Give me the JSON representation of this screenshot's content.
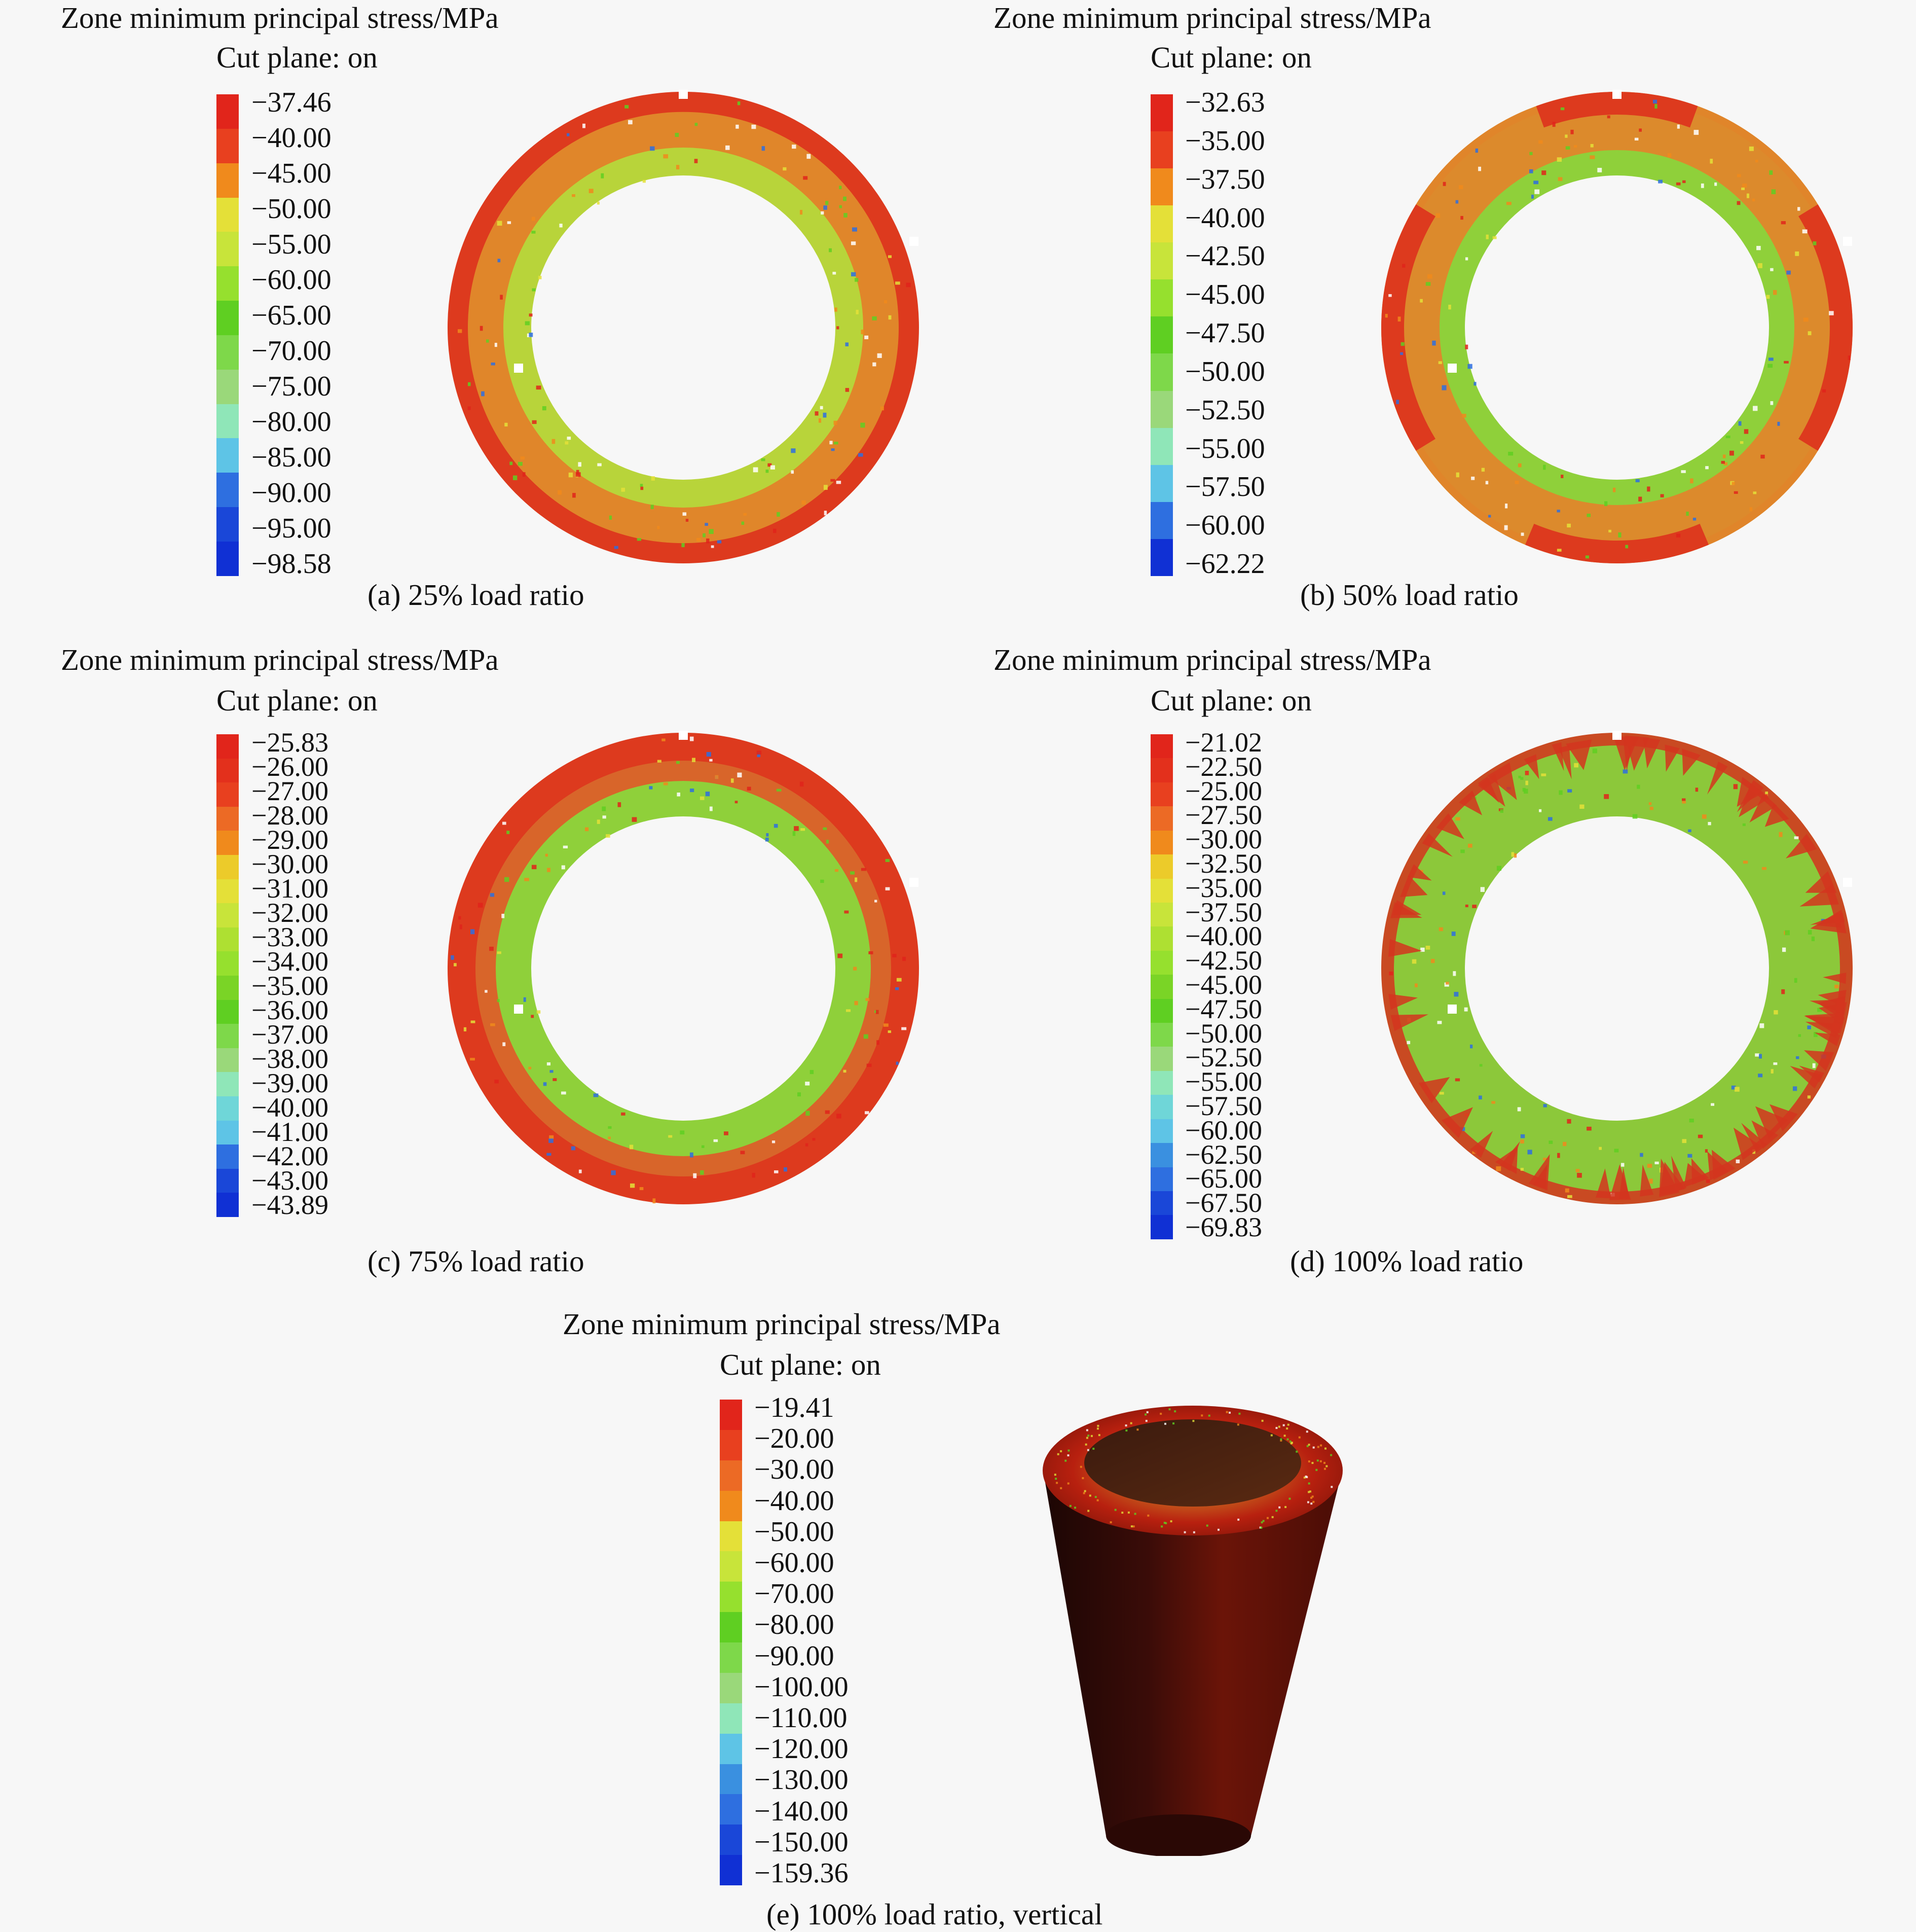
{
  "panels": [
    {
      "id": "a",
      "title": "Zone minimum principal stress/MPa",
      "subtitle": "Cut plane: on",
      "caption": "(a) 25% load ratio",
      "legend": [
        "−37.46",
        "−40.00",
        "−45.00",
        "−50.00",
        "−55.00",
        "−60.00",
        "−65.00",
        "−70.00",
        "−75.00",
        "−80.00",
        "−85.00",
        "−90.00",
        "−95.00",
        "−98.58"
      ],
      "colors": [
        "#e1251b",
        "#e8401f",
        "#f08a1c",
        "#e4e038",
        "#c8e43a",
        "#96e02e",
        "#5fcf22",
        "#7ed84a",
        "#9ad87a",
        "#8fe6b8",
        "#5ec4e6",
        "#2e6fe0",
        "#1a47d8",
        "#1030d4"
      ]
    },
    {
      "id": "b",
      "title": "Zone minimum principal stress/MPa",
      "subtitle": "Cut plane: on",
      "caption": "(b) 50% load ratio",
      "legend": [
        "−32.63",
        "−35.00",
        "−37.50",
        "−40.00",
        "−42.50",
        "−45.00",
        "−47.50",
        "−50.00",
        "−52.50",
        "−55.00",
        "−57.50",
        "−60.00",
        "−62.22"
      ],
      "colors": [
        "#e1251b",
        "#e8401f",
        "#f08a1c",
        "#e4e038",
        "#c8e43a",
        "#96e02e",
        "#5fcf22",
        "#7ed84a",
        "#9ad87a",
        "#8fe6b8",
        "#5ec4e6",
        "#2e6fe0",
        "#1030d4"
      ]
    },
    {
      "id": "c",
      "title": "Zone minimum principal stress/MPa",
      "subtitle": "Cut plane: on",
      "caption": "(c) 75% load ratio",
      "legend": [
        "−25.83",
        "−26.00",
        "−27.00",
        "−28.00",
        "−29.00",
        "−30.00",
        "−31.00",
        "−32.00",
        "−33.00",
        "−34.00",
        "−35.00",
        "−36.00",
        "−37.00",
        "−38.00",
        "−39.00",
        "−40.00",
        "−41.00",
        "−42.00",
        "−43.00",
        "−43.89"
      ],
      "colors": [
        "#e1251b",
        "#e3301c",
        "#e8401f",
        "#ec6a25",
        "#f08a1c",
        "#eccb2a",
        "#e4e038",
        "#c8e43a",
        "#aee032",
        "#96e02e",
        "#7ad426",
        "#5fcf22",
        "#7ed84a",
        "#9ad87a",
        "#8fe6b8",
        "#6fd6d8",
        "#5ec4e6",
        "#2e6fe0",
        "#1a47d8",
        "#1030d4"
      ]
    },
    {
      "id": "d",
      "title": "Zone minimum principal stress/MPa",
      "subtitle": "Cut plane: on",
      "caption": "(d) 100% load ratio",
      "legend": [
        "−21.02",
        "−22.50",
        "−25.00",
        "−27.50",
        "−30.00",
        "−32.50",
        "−35.00",
        "−37.50",
        "−40.00",
        "−42.50",
        "−45.00",
        "−47.50",
        "−50.00",
        "−52.50",
        "−55.00",
        "−57.50",
        "−60.00",
        "−62.50",
        "−65.00",
        "−67.50",
        "−69.83"
      ],
      "colors": [
        "#e1251b",
        "#e3301c",
        "#e8401f",
        "#ec6a25",
        "#f08a1c",
        "#eccb2a",
        "#e4e038",
        "#c8e43a",
        "#aee032",
        "#96e02e",
        "#7ad426",
        "#5fcf22",
        "#7ed84a",
        "#9ad87a",
        "#8fe6b8",
        "#6fd6d8",
        "#5ec4e6",
        "#3a90e0",
        "#2e6fe0",
        "#1a47d8",
        "#1030d4"
      ]
    },
    {
      "id": "e",
      "title": "Zone minimum principal stress/MPa",
      "subtitle": "Cut plane: on",
      "caption": "(e) 100% load ratio, vertical",
      "legend": [
        "−19.41",
        "−20.00",
        "−30.00",
        "−40.00",
        "−50.00",
        "−60.00",
        "−70.00",
        "−80.00",
        "−90.00",
        "−100.00",
        "−110.00",
        "−120.00",
        "−130.00",
        "−140.00",
        "−150.00",
        "−159.36"
      ],
      "colors": [
        "#e1251b",
        "#e8401f",
        "#ec6a25",
        "#f08a1c",
        "#e4e038",
        "#c8e43a",
        "#96e02e",
        "#5fcf22",
        "#7ed84a",
        "#9ad87a",
        "#8fe6b8",
        "#5ec4e6",
        "#3a90e0",
        "#2e6fe0",
        "#1a47d8",
        "#1030d4"
      ]
    }
  ]
}
